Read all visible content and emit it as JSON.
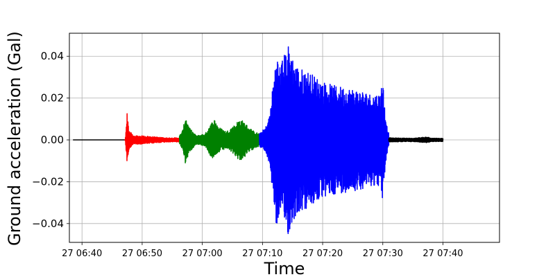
{
  "chart_data": {
    "type": "line",
    "title": "",
    "xlabel": "Time",
    "ylabel": "Ground acceleration (Gal)",
    "grid": true,
    "xlim_minutes": [
      -2.1,
      69.4
    ],
    "ylim": [
      -0.049,
      0.051
    ],
    "x_ticks": [
      {
        "value": 0,
        "label": "27 06:40"
      },
      {
        "value": 10,
        "label": "27 06:50"
      },
      {
        "value": 20,
        "label": "27 07:00"
      },
      {
        "value": 30,
        "label": "27 07:10"
      },
      {
        "value": 40,
        "label": "27 07:20"
      },
      {
        "value": 50,
        "label": "27 07:30"
      },
      {
        "value": 60,
        "label": "27 07:40"
      }
    ],
    "y_ticks": [
      {
        "value": 0.04,
        "label": "0.04"
      },
      {
        "value": 0.02,
        "label": "0.02"
      },
      {
        "value": 0.0,
        "label": "0.00"
      },
      {
        "value": -0.02,
        "label": "−0.02"
      },
      {
        "value": -0.04,
        "label": "−0.04"
      }
    ],
    "series": [
      {
        "color": "#000000",
        "x_range": [
          -5,
          7.1
        ],
        "envelope": [
          [
            -5,
            0.0
          ],
          [
            7.1,
            0.0
          ]
        ]
      },
      {
        "color": "#ff0000",
        "x_range": [
          7.1,
          16.2
        ],
        "envelope": [
          [
            7.1,
            0.0
          ],
          [
            7.2,
            0.0005
          ],
          [
            7.35,
            0.007
          ],
          [
            7.5,
            0.013
          ],
          [
            7.8,
            0.005
          ],
          [
            8.5,
            0.002
          ],
          [
            10,
            0.002
          ],
          [
            12,
            0.0015
          ],
          [
            14,
            0.001
          ],
          [
            16.2,
            0.001
          ]
        ]
      },
      {
        "color": "#008000",
        "x_range": [
          16.2,
          29.5
        ],
        "envelope": [
          [
            16.2,
            0.002
          ],
          [
            16.8,
            0.005
          ],
          [
            17.2,
            0.012
          ],
          [
            17.8,
            0.006
          ],
          [
            19,
            0.002
          ],
          [
            20.5,
            0.003
          ],
          [
            21.2,
            0.007
          ],
          [
            22,
            0.01
          ],
          [
            22.8,
            0.006
          ],
          [
            24,
            0.004
          ],
          [
            25.3,
            0.007
          ],
          [
            26.2,
            0.01
          ],
          [
            26.8,
            0.009
          ],
          [
            27.8,
            0.006
          ],
          [
            28.6,
            0.004
          ],
          [
            29.5,
            0.003
          ]
        ]
      },
      {
        "color": "#0000ff",
        "x_range": [
          29.5,
          51
        ],
        "envelope": [
          [
            29.5,
            0.003
          ],
          [
            30.5,
            0.006
          ],
          [
            31.2,
            0.012
          ],
          [
            31.8,
            0.028
          ],
          [
            32.3,
            0.042
          ],
          [
            32.8,
            0.036
          ],
          [
            33.5,
            0.04
          ],
          [
            34,
            0.044
          ],
          [
            34.4,
            0.046
          ],
          [
            35,
            0.04
          ],
          [
            35.6,
            0.036
          ],
          [
            36.3,
            0.034
          ],
          [
            37,
            0.034
          ],
          [
            38,
            0.032
          ],
          [
            40,
            0.028
          ],
          [
            42,
            0.026
          ],
          [
            44,
            0.025
          ],
          [
            46,
            0.024
          ],
          [
            48,
            0.022
          ],
          [
            49.5,
            0.022
          ],
          [
            50,
            0.03
          ],
          [
            50.2,
            0.02
          ],
          [
            50.6,
            0.008
          ],
          [
            51,
            0.003
          ]
        ]
      },
      {
        "color": "#000000",
        "x_range": [
          51,
          60
        ],
        "envelope": [
          [
            51,
            0.001
          ],
          [
            55,
            0.0008
          ],
          [
            57.6,
            0.0015
          ],
          [
            58,
            0.0008
          ],
          [
            60,
            0.0008
          ]
        ]
      }
    ]
  }
}
